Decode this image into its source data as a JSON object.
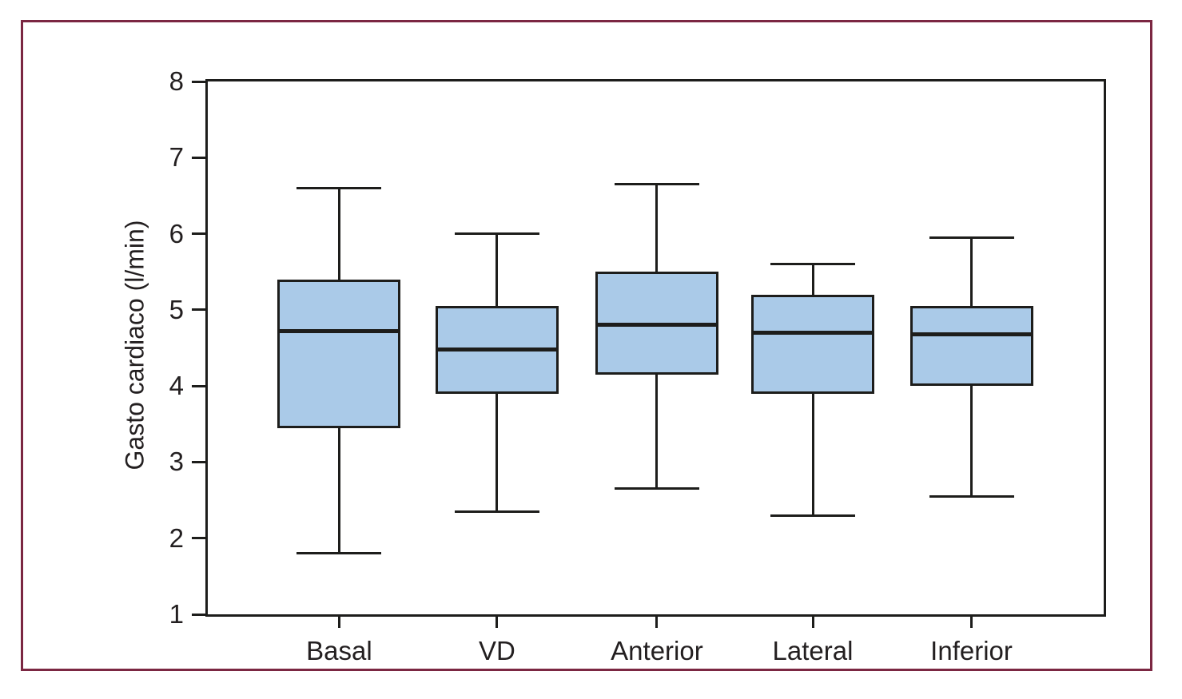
{
  "figure": {
    "border_color": "#7b2742",
    "background_color": "#ffffff"
  },
  "chart_data": {
    "type": "boxplot",
    "title": "",
    "xlabel": "",
    "ylabel": "Gasto cardiaco (l/min)",
    "ylim": [
      1,
      8
    ],
    "yticks": [
      1,
      2,
      3,
      4,
      5,
      6,
      7,
      8
    ],
    "grid": false,
    "legend": false,
    "categories": [
      "Basal",
      "VD",
      "Anterior",
      "Lateral",
      "Inferior"
    ],
    "series": [
      {
        "name": "Basal",
        "whisker_low": 1.8,
        "q1": 3.45,
        "median": 4.72,
        "q3": 5.4,
        "whisker_high": 6.6
      },
      {
        "name": "VD",
        "whisker_low": 2.35,
        "q1": 3.9,
        "median": 4.48,
        "q3": 5.05,
        "whisker_high": 6.0
      },
      {
        "name": "Anterior",
        "whisker_low": 2.65,
        "q1": 4.15,
        "median": 4.8,
        "q3": 5.5,
        "whisker_high": 6.65
      },
      {
        "name": "Lateral",
        "whisker_low": 2.3,
        "q1": 3.9,
        "median": 4.7,
        "q3": 5.2,
        "whisker_high": 5.6
      },
      {
        "name": "Inferior",
        "whisker_low": 2.55,
        "q1": 4.0,
        "median": 4.68,
        "q3": 5.05,
        "whisker_high": 5.95
      }
    ],
    "box_fill_color": "#aacae8",
    "line_color": "#1d1d1b"
  }
}
